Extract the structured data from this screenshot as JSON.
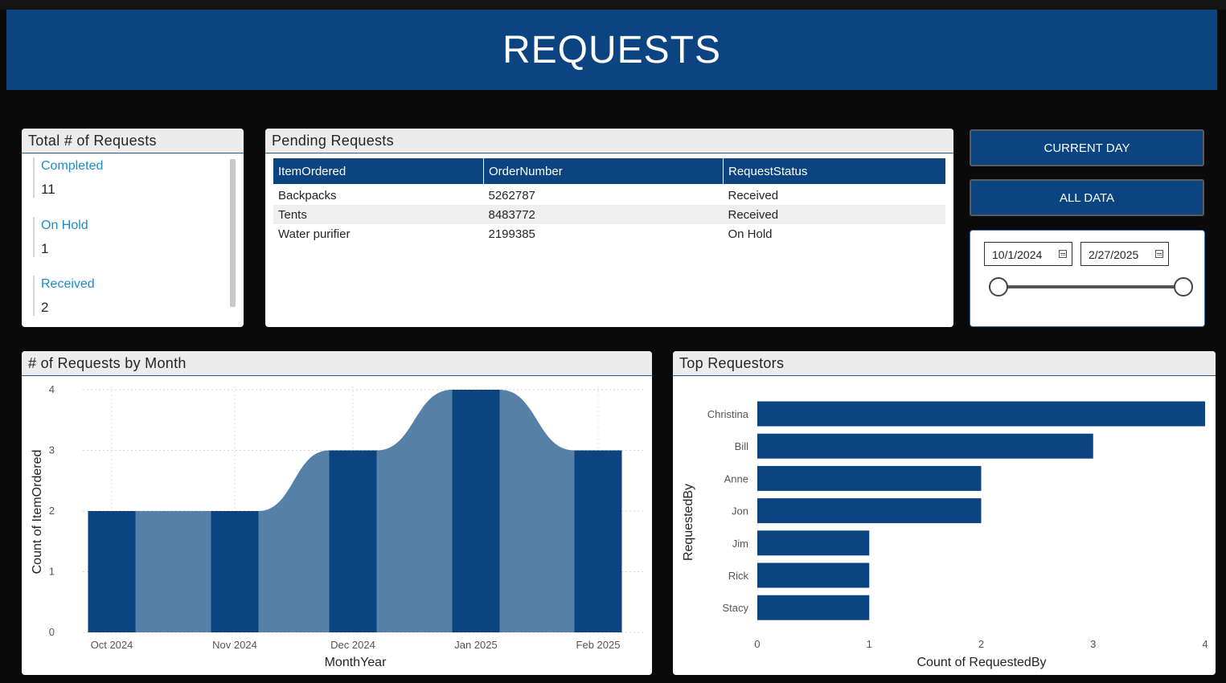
{
  "header": {
    "title": "REQUESTS"
  },
  "totals": {
    "title": "Total # of Requests",
    "items": [
      {
        "label": "Completed",
        "value": "11"
      },
      {
        "label": "On Hold",
        "value": "1"
      },
      {
        "label": "Received",
        "value": "2"
      }
    ]
  },
  "pending": {
    "title": "Pending Requests",
    "columns": [
      "ItemOrdered",
      "OrderNumber",
      "RequestStatus"
    ],
    "rows": [
      [
        "Backpacks",
        "5262787",
        "Received"
      ],
      [
        "Tents",
        "8483772",
        "Received"
      ],
      [
        "Water purifier",
        "2199385",
        "On Hold"
      ]
    ]
  },
  "buttons": {
    "current_day": "CURRENT DAY",
    "all_data": "ALL DATA"
  },
  "date_slicer": {
    "start": "10/1/2024",
    "end": "2/27/2025"
  },
  "colors": {
    "brand": "#0b4480",
    "bar_light": "#5580a8",
    "accent_text": "#1d8bc9"
  },
  "month_chart": {
    "title": "# of Requests by Month",
    "chart_data": {
      "type": "bar",
      "categories": [
        "Oct 2024",
        "Nov 2024",
        "Dec 2024",
        "Jan 2025",
        "Feb 2025"
      ],
      "values": [
        2,
        2,
        3,
        4,
        3
      ],
      "xlabel": "MonthYear",
      "ylabel": "Count of ItemOrdered",
      "ylim": [
        0,
        4
      ],
      "yticks": [
        "0",
        "1",
        "2",
        "3",
        "4"
      ],
      "grid": true
    }
  },
  "requestors_chart": {
    "title": "Top Requestors",
    "chart_data": {
      "type": "bar",
      "orientation": "horizontal",
      "categories": [
        "Christina",
        "Bill",
        "Anne",
        "Jon",
        "Jim",
        "Rick",
        "Stacy"
      ],
      "values": [
        4,
        3,
        2,
        2,
        1,
        1,
        1
      ],
      "xlabel": "Count of RequestedBy",
      "ylabel": "RequestedBy",
      "xlim": [
        0,
        4
      ],
      "xticks": [
        "0",
        "1",
        "2",
        "3",
        "4"
      ],
      "grid": false
    }
  }
}
